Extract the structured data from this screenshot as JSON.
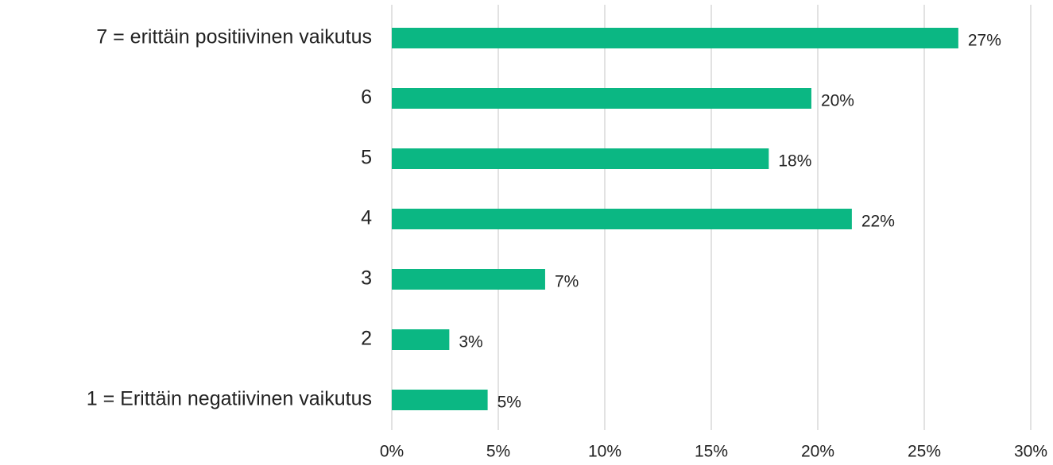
{
  "chart_data": {
    "type": "bar",
    "orientation": "horizontal",
    "categories": [
      "7 = erittäin positiivinen vaikutus",
      "6",
      "5",
      "4",
      "3",
      "2",
      "1 = Erittäin negatiivinen vaikutus"
    ],
    "values": [
      26.6,
      19.7,
      17.7,
      21.6,
      7.2,
      2.7,
      4.5
    ],
    "value_labels": [
      "27%",
      "20%",
      "18%",
      "22%",
      "7%",
      "3%",
      "5%"
    ],
    "color": "#0bb783",
    "xlim": [
      0,
      30
    ],
    "xticks": [
      {
        "value": 0,
        "label": "0%"
      },
      {
        "value": 5,
        "label": "5%"
      },
      {
        "value": 10,
        "label": "10%"
      },
      {
        "value": 15,
        "label": "15%"
      },
      {
        "value": 20,
        "label": "20%"
      },
      {
        "value": 25,
        "label": "25%"
      },
      {
        "value": 30,
        "label": "30%"
      }
    ],
    "grid": true
  }
}
